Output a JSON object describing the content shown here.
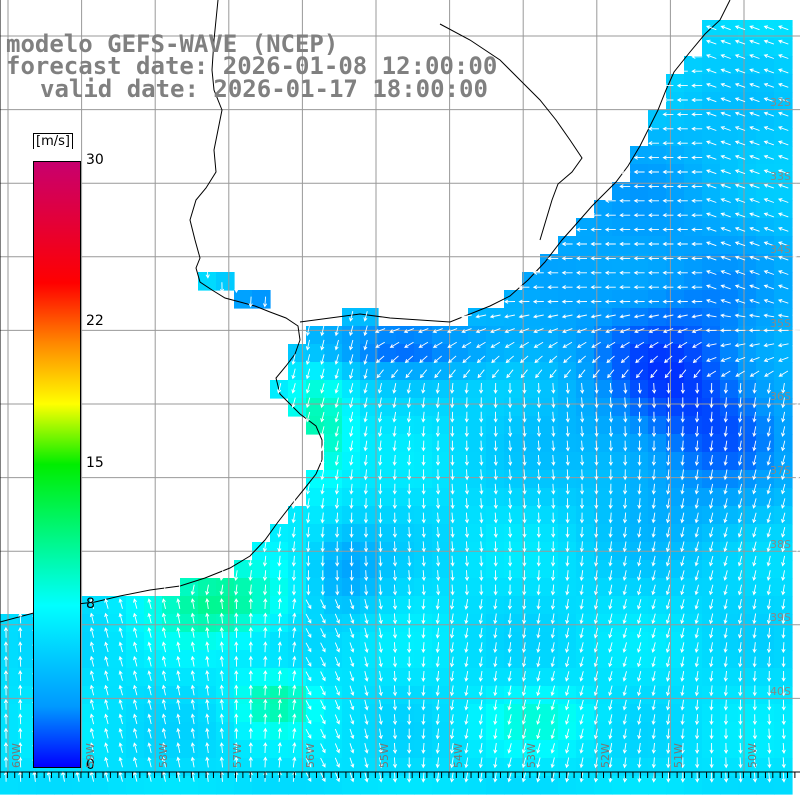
{
  "title": {
    "line1": "modelo GEFS-WAVE (NCEP)",
    "line2": "forecast date: 2026-01-08 12:00:00",
    "line3": "valid date: 2026-01-17 18:00:00"
  },
  "colorbar": {
    "unit": "[m/s]",
    "min": 0,
    "max": 30,
    "ticks": [
      "30",
      "22",
      "15",
      "8",
      "0"
    ],
    "tick_values": [
      30,
      22,
      15,
      8,
      0
    ],
    "colors": [
      "#0000ff",
      "#0099ff",
      "#00ffff",
      "#00ee00",
      "#ffff00",
      "#ff8800",
      "#ff0000",
      "#c8006e"
    ]
  },
  "lat_labels": [
    "32S",
    "33S",
    "34S",
    "35S",
    "36S",
    "37S",
    "38S",
    "39S",
    "40S"
  ],
  "lon_labels": [
    "60W",
    "59W",
    "58W",
    "57W",
    "56W",
    "55W",
    "54W",
    "53W",
    "52W",
    "51W",
    "50W"
  ],
  "map": {
    "field": "wind speed",
    "land_color": "#ffffff",
    "coast_color": "#000000",
    "grid_color": "#999999",
    "arrow_color": "#ffffff"
  }
}
